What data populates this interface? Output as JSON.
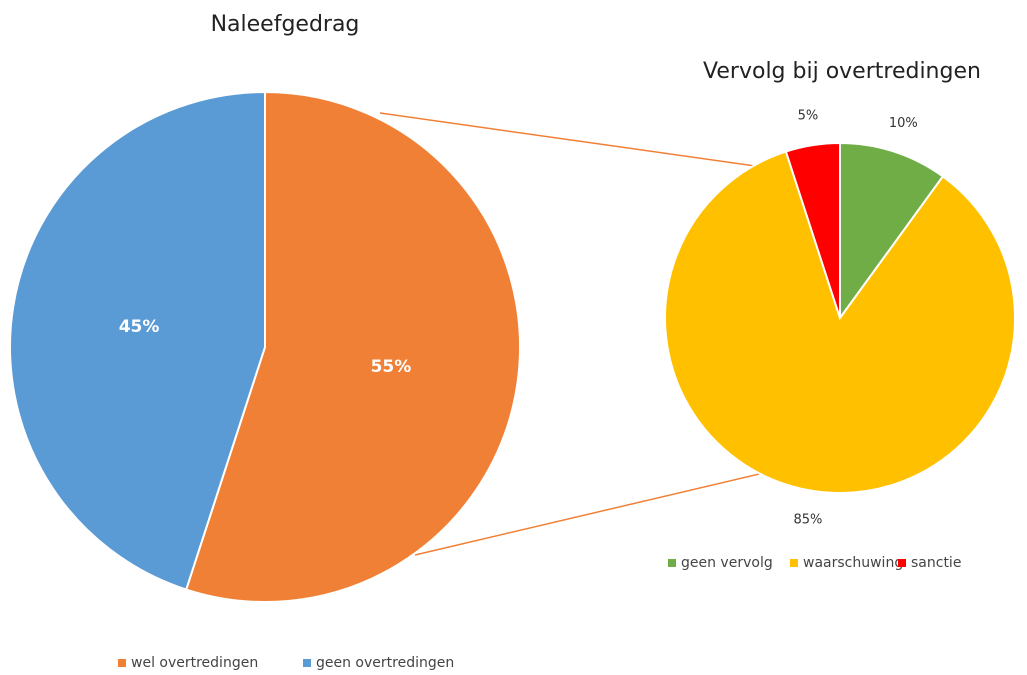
{
  "chart_data": [
    {
      "type": "pie",
      "title": "Naleefgedrag",
      "categories": [
        "wel overtredingen",
        "geen overtredingen"
      ],
      "values": [
        55,
        45
      ],
      "value_labels": [
        "55%",
        "45%"
      ],
      "colors": [
        "#f08035",
        "#5b9bd5"
      ],
      "legend": "bottom"
    },
    {
      "type": "pie",
      "title": "Vervolg bij overtredingen",
      "categories": [
        "geen vervolg",
        "waarschuwing",
        "sanctie"
      ],
      "values": [
        10,
        85,
        5
      ],
      "value_labels": [
        "10%",
        "85%",
        "5%"
      ],
      "colors": [
        "#70ad47",
        "#ffc000",
        "#ff0000"
      ],
      "legend": "bottom"
    }
  ]
}
